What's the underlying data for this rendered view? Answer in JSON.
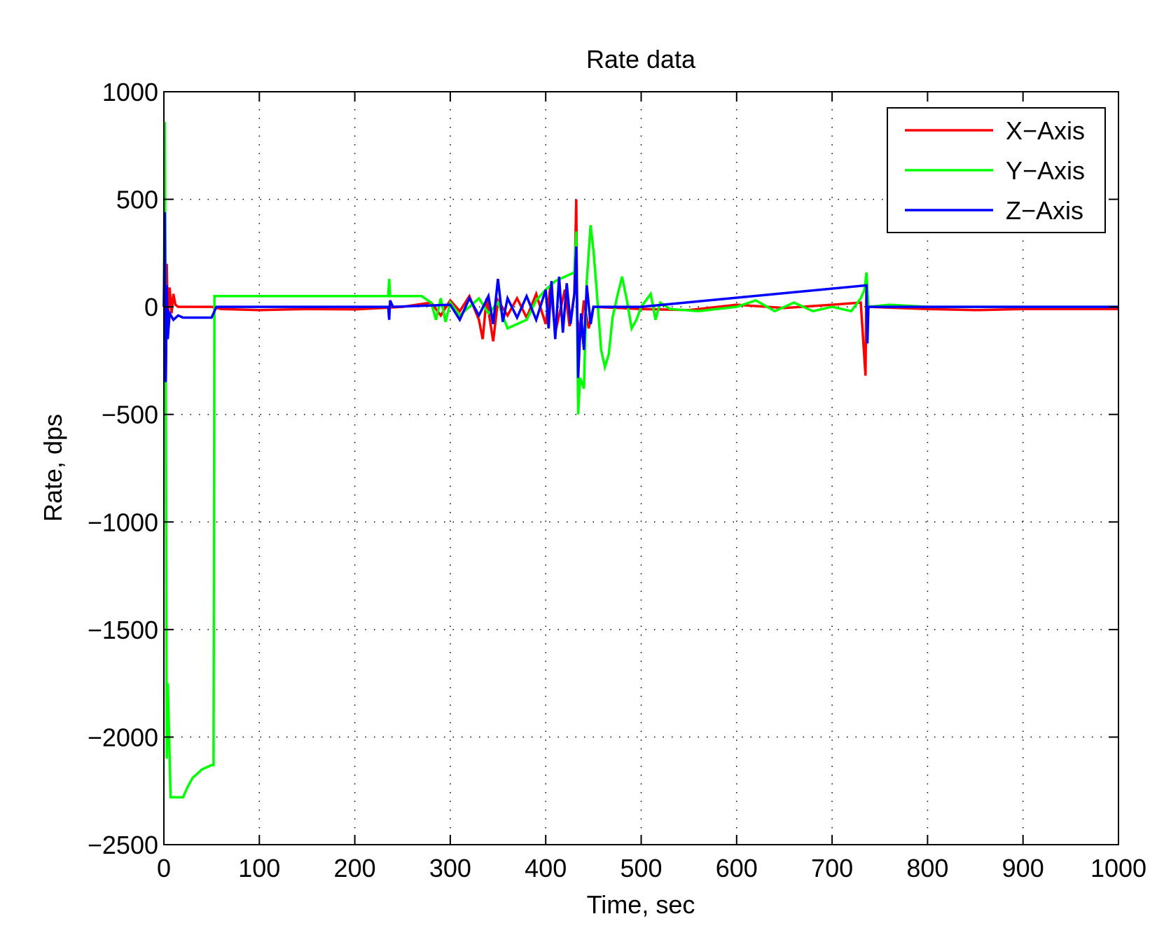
{
  "chart_data": {
    "type": "line",
    "title": "Rate data",
    "xlabel": "Time, sec",
    "ylabel": "Rate, dps",
    "xlim": [
      0,
      1000
    ],
    "ylim": [
      -2500,
      1000
    ],
    "xticks": [
      0,
      100,
      200,
      300,
      400,
      500,
      600,
      700,
      800,
      900,
      1000
    ],
    "yticks": [
      1000,
      500,
      0,
      -500,
      -1000,
      -1500,
      -2000,
      -2500
    ],
    "xtick_labels": [
      "0",
      "100",
      "200",
      "300",
      "400",
      "500",
      "600",
      "700",
      "800",
      "900",
      "1000"
    ],
    "ytick_labels": [
      "1000",
      "500",
      "0",
      "−500",
      "−1000",
      "−1500",
      "−2000",
      "−2500"
    ],
    "grid": true,
    "legend_position": "top-right",
    "series": [
      {
        "name": "X−Axis",
        "color": "#ff0000",
        "points": [
          [
            0,
            0
          ],
          [
            1,
            350
          ],
          [
            2,
            -350
          ],
          [
            3,
            200
          ],
          [
            4,
            -50
          ],
          [
            6,
            90
          ],
          [
            8,
            -30
          ],
          [
            10,
            60
          ],
          [
            12,
            10
          ],
          [
            15,
            0
          ],
          [
            50,
            0
          ],
          [
            60,
            -10
          ],
          [
            100,
            -15
          ],
          [
            150,
            -10
          ],
          [
            200,
            -12
          ],
          [
            250,
            0
          ],
          [
            280,
            20
          ],
          [
            290,
            -40
          ],
          [
            300,
            30
          ],
          [
            310,
            -20
          ],
          [
            320,
            50
          ],
          [
            330,
            -60
          ],
          [
            334,
            -150
          ],
          [
            338,
            40
          ],
          [
            345,
            -160
          ],
          [
            350,
            30
          ],
          [
            360,
            -40
          ],
          [
            370,
            40
          ],
          [
            380,
            -50
          ],
          [
            390,
            60
          ],
          [
            400,
            -80
          ],
          [
            405,
            100
          ],
          [
            410,
            -120
          ],
          [
            420,
            80
          ],
          [
            425,
            -90
          ],
          [
            430,
            60
          ],
          [
            432,
            500
          ],
          [
            433,
            -50
          ],
          [
            436,
            -150
          ],
          [
            440,
            30
          ],
          [
            445,
            -100
          ],
          [
            450,
            0
          ],
          [
            500,
            -10
          ],
          [
            550,
            -15
          ],
          [
            600,
            10
          ],
          [
            650,
            -5
          ],
          [
            700,
            10
          ],
          [
            730,
            20
          ],
          [
            735,
            -320
          ],
          [
            736,
            130
          ],
          [
            738,
            0
          ],
          [
            800,
            -10
          ],
          [
            850,
            -15
          ],
          [
            900,
            -10
          ],
          [
            950,
            -10
          ],
          [
            1000,
            -10
          ]
        ]
      },
      {
        "name": "Y−Axis",
        "color": "#00ff00",
        "points": [
          [
            0,
            0
          ],
          [
            1,
            860
          ],
          [
            2,
            -380
          ],
          [
            3,
            -2100
          ],
          [
            4,
            -1750
          ],
          [
            5,
            -1900
          ],
          [
            7,
            -2280
          ],
          [
            20,
            -2280
          ],
          [
            25,
            -2230
          ],
          [
            30,
            -2190
          ],
          [
            40,
            -2150
          ],
          [
            50,
            -2130
          ],
          [
            52,
            -2130
          ],
          [
            53,
            50
          ],
          [
            235,
            50
          ],
          [
            236,
            130
          ],
          [
            237,
            50
          ],
          [
            270,
            50
          ],
          [
            280,
            20
          ],
          [
            285,
            -60
          ],
          [
            290,
            40
          ],
          [
            295,
            -70
          ],
          [
            300,
            20
          ],
          [
            310,
            -40
          ],
          [
            320,
            0
          ],
          [
            330,
            40
          ],
          [
            340,
            -30
          ],
          [
            350,
            20
          ],
          [
            360,
            -100
          ],
          [
            370,
            -80
          ],
          [
            380,
            -60
          ],
          [
            390,
            30
          ],
          [
            400,
            80
          ],
          [
            410,
            120
          ],
          [
            420,
            140
          ],
          [
            430,
            160
          ],
          [
            432,
            350
          ],
          [
            434,
            -500
          ],
          [
            436,
            -330
          ],
          [
            440,
            -380
          ],
          [
            443,
            120
          ],
          [
            447,
            380
          ],
          [
            450,
            260
          ],
          [
            453,
            100
          ],
          [
            458,
            -200
          ],
          [
            462,
            -280
          ],
          [
            466,
            -220
          ],
          [
            470,
            -50
          ],
          [
            475,
            50
          ],
          [
            480,
            140
          ],
          [
            485,
            30
          ],
          [
            490,
            -100
          ],
          [
            495,
            -60
          ],
          [
            500,
            0
          ],
          [
            510,
            60
          ],
          [
            515,
            -60
          ],
          [
            520,
            20
          ],
          [
            530,
            -10
          ],
          [
            560,
            -20
          ],
          [
            600,
            0
          ],
          [
            620,
            30
          ],
          [
            640,
            -20
          ],
          [
            660,
            20
          ],
          [
            680,
            -20
          ],
          [
            700,
            0
          ],
          [
            720,
            -20
          ],
          [
            730,
            40
          ],
          [
            734,
            80
          ],
          [
            736,
            160
          ],
          [
            738,
            0
          ],
          [
            760,
            10
          ],
          [
            800,
            0
          ],
          [
            1000,
            0
          ]
        ]
      },
      {
        "name": "Z−Axis",
        "color": "#0000ff",
        "points": [
          [
            0,
            0
          ],
          [
            1,
            440
          ],
          [
            2,
            -350
          ],
          [
            3,
            100
          ],
          [
            4,
            -150
          ],
          [
            6,
            -30
          ],
          [
            10,
            -60
          ],
          [
            15,
            -40
          ],
          [
            20,
            -50
          ],
          [
            50,
            -50
          ],
          [
            55,
            0
          ],
          [
            235,
            0
          ],
          [
            236,
            -60
          ],
          [
            237,
            30
          ],
          [
            240,
            0
          ],
          [
            300,
            10
          ],
          [
            310,
            -60
          ],
          [
            320,
            40
          ],
          [
            330,
            -40
          ],
          [
            340,
            50
          ],
          [
            345,
            -80
          ],
          [
            350,
            130
          ],
          [
            355,
            -70
          ],
          [
            360,
            40
          ],
          [
            370,
            -50
          ],
          [
            380,
            50
          ],
          [
            390,
            -60
          ],
          [
            400,
            80
          ],
          [
            403,
            -100
          ],
          [
            406,
            120
          ],
          [
            410,
            -150
          ],
          [
            414,
            140
          ],
          [
            418,
            -120
          ],
          [
            422,
            110
          ],
          [
            426,
            -80
          ],
          [
            430,
            60
          ],
          [
            432,
            280
          ],
          [
            434,
            -330
          ],
          [
            437,
            -30
          ],
          [
            440,
            -200
          ],
          [
            443,
            100
          ],
          [
            447,
            -80
          ],
          [
            450,
            0
          ],
          [
            500,
            0
          ],
          [
            736,
            100
          ],
          [
            737,
            -170
          ],
          [
            738,
            0
          ],
          [
            1000,
            0
          ]
        ]
      }
    ]
  }
}
